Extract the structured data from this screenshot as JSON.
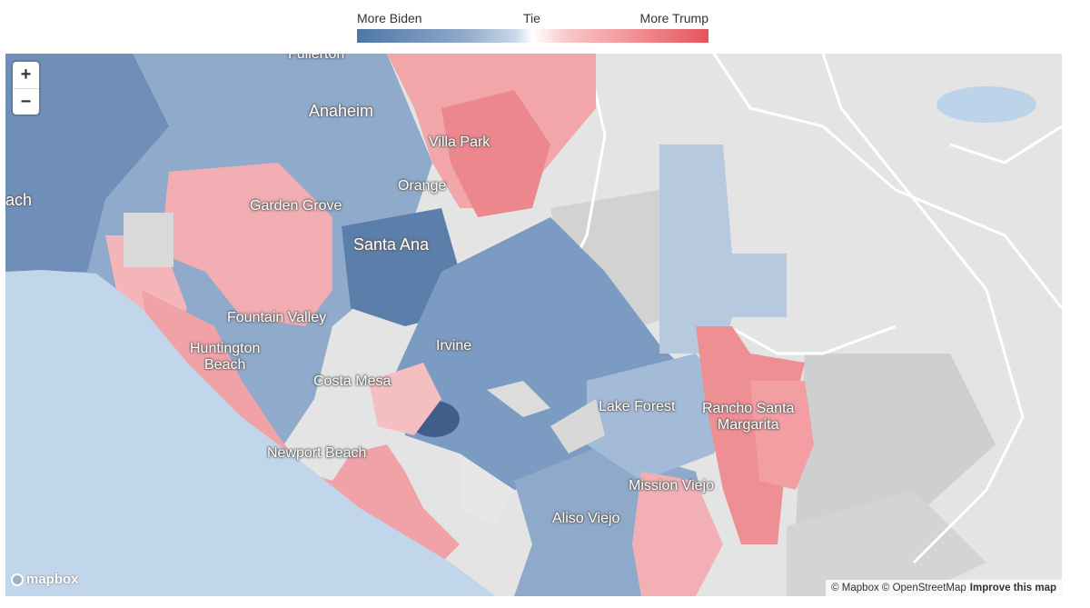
{
  "legend": {
    "left_label": "More Biden",
    "middle_label": "Tie",
    "right_label": "More Trump",
    "colors": {
      "biden": "#4e76a6",
      "tie": "#ffffff",
      "trump": "#e5545d"
    }
  },
  "map": {
    "zoom_in": "+",
    "zoom_out": "−",
    "places": [
      {
        "name": "Fullerton"
      },
      {
        "name": "Anaheim"
      },
      {
        "name": "Villa Park"
      },
      {
        "name": "Orange"
      },
      {
        "name": "Garden Grove"
      },
      {
        "name": "ach"
      },
      {
        "name": "Santa Ana"
      },
      {
        "name": "Fountain Valley"
      },
      {
        "name": "Huntington\nBeach"
      },
      {
        "name": "Irvine"
      },
      {
        "name": "Costa Mesa"
      },
      {
        "name": "Lake Forest"
      },
      {
        "name": "Rancho Santa\nMargarita"
      },
      {
        "name": "Newport Beach"
      },
      {
        "name": "Mission Viejo"
      },
      {
        "name": "Aliso Viejo"
      }
    ],
    "logo_text": "mapbox",
    "attribution": {
      "text": "© Mapbox © OpenStreetMap",
      "improve": "Improve this map"
    }
  }
}
